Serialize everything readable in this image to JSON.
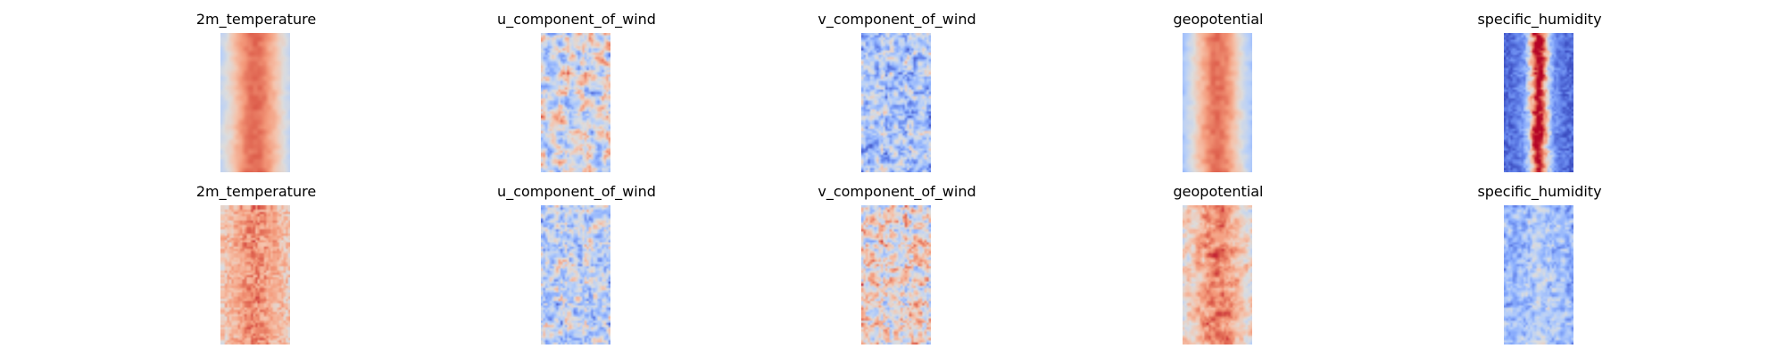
{
  "chart_data": {
    "type": "heatmap",
    "colormap": "coolwarm",
    "rows": [
      {
        "panels": [
          {
            "title": "2m_temperature",
            "pattern": "band-warm"
          },
          {
            "title": "u_component_of_wind",
            "pattern": "streaks-mixed"
          },
          {
            "title": "v_component_of_wind",
            "pattern": "noise-cool"
          },
          {
            "title": "geopotential",
            "pattern": "band-warm-smooth"
          },
          {
            "title": "specific_humidity",
            "pattern": "band-narrow-cold-edges"
          }
        ]
      },
      {
        "panels": [
          {
            "title": "2m_temperature",
            "pattern": "noise-warm-blocky"
          },
          {
            "title": "u_component_of_wind",
            "pattern": "noise-mixed-cool"
          },
          {
            "title": "v_component_of_wind",
            "pattern": "noise-mixed-warm"
          },
          {
            "title": "geopotential",
            "pattern": "noise-warm-band"
          },
          {
            "title": "specific_humidity",
            "pattern": "noise-cool-light"
          }
        ]
      }
    ],
    "axes": "off",
    "grid": false,
    "legend": "none"
  }
}
